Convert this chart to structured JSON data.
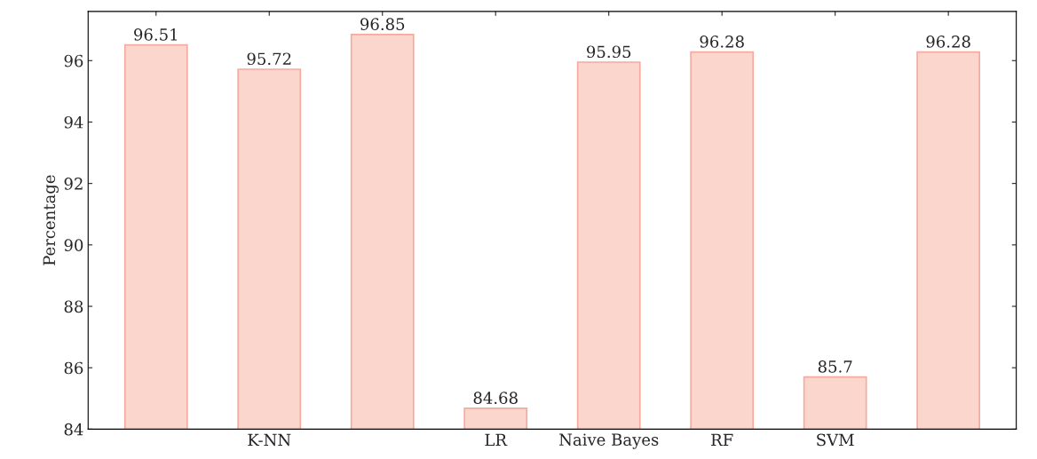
{
  "chart_data": {
    "type": "bar",
    "ylabel": "Percentage",
    "categories": [
      null,
      "K-NN",
      null,
      "LR",
      "Naive Bayes",
      "RF",
      "SVM",
      null
    ],
    "values": [
      96.51,
      95.72,
      96.85,
      84.68,
      95.95,
      96.28,
      85.7,
      96.28
    ],
    "color": "#fbd6cc",
    "ylim": [
      84,
      97.6
    ],
    "yticks": [
      84,
      86,
      88,
      90,
      92,
      94,
      96
    ],
    "data_labels": true,
    "grid": false,
    "legend": false
  }
}
